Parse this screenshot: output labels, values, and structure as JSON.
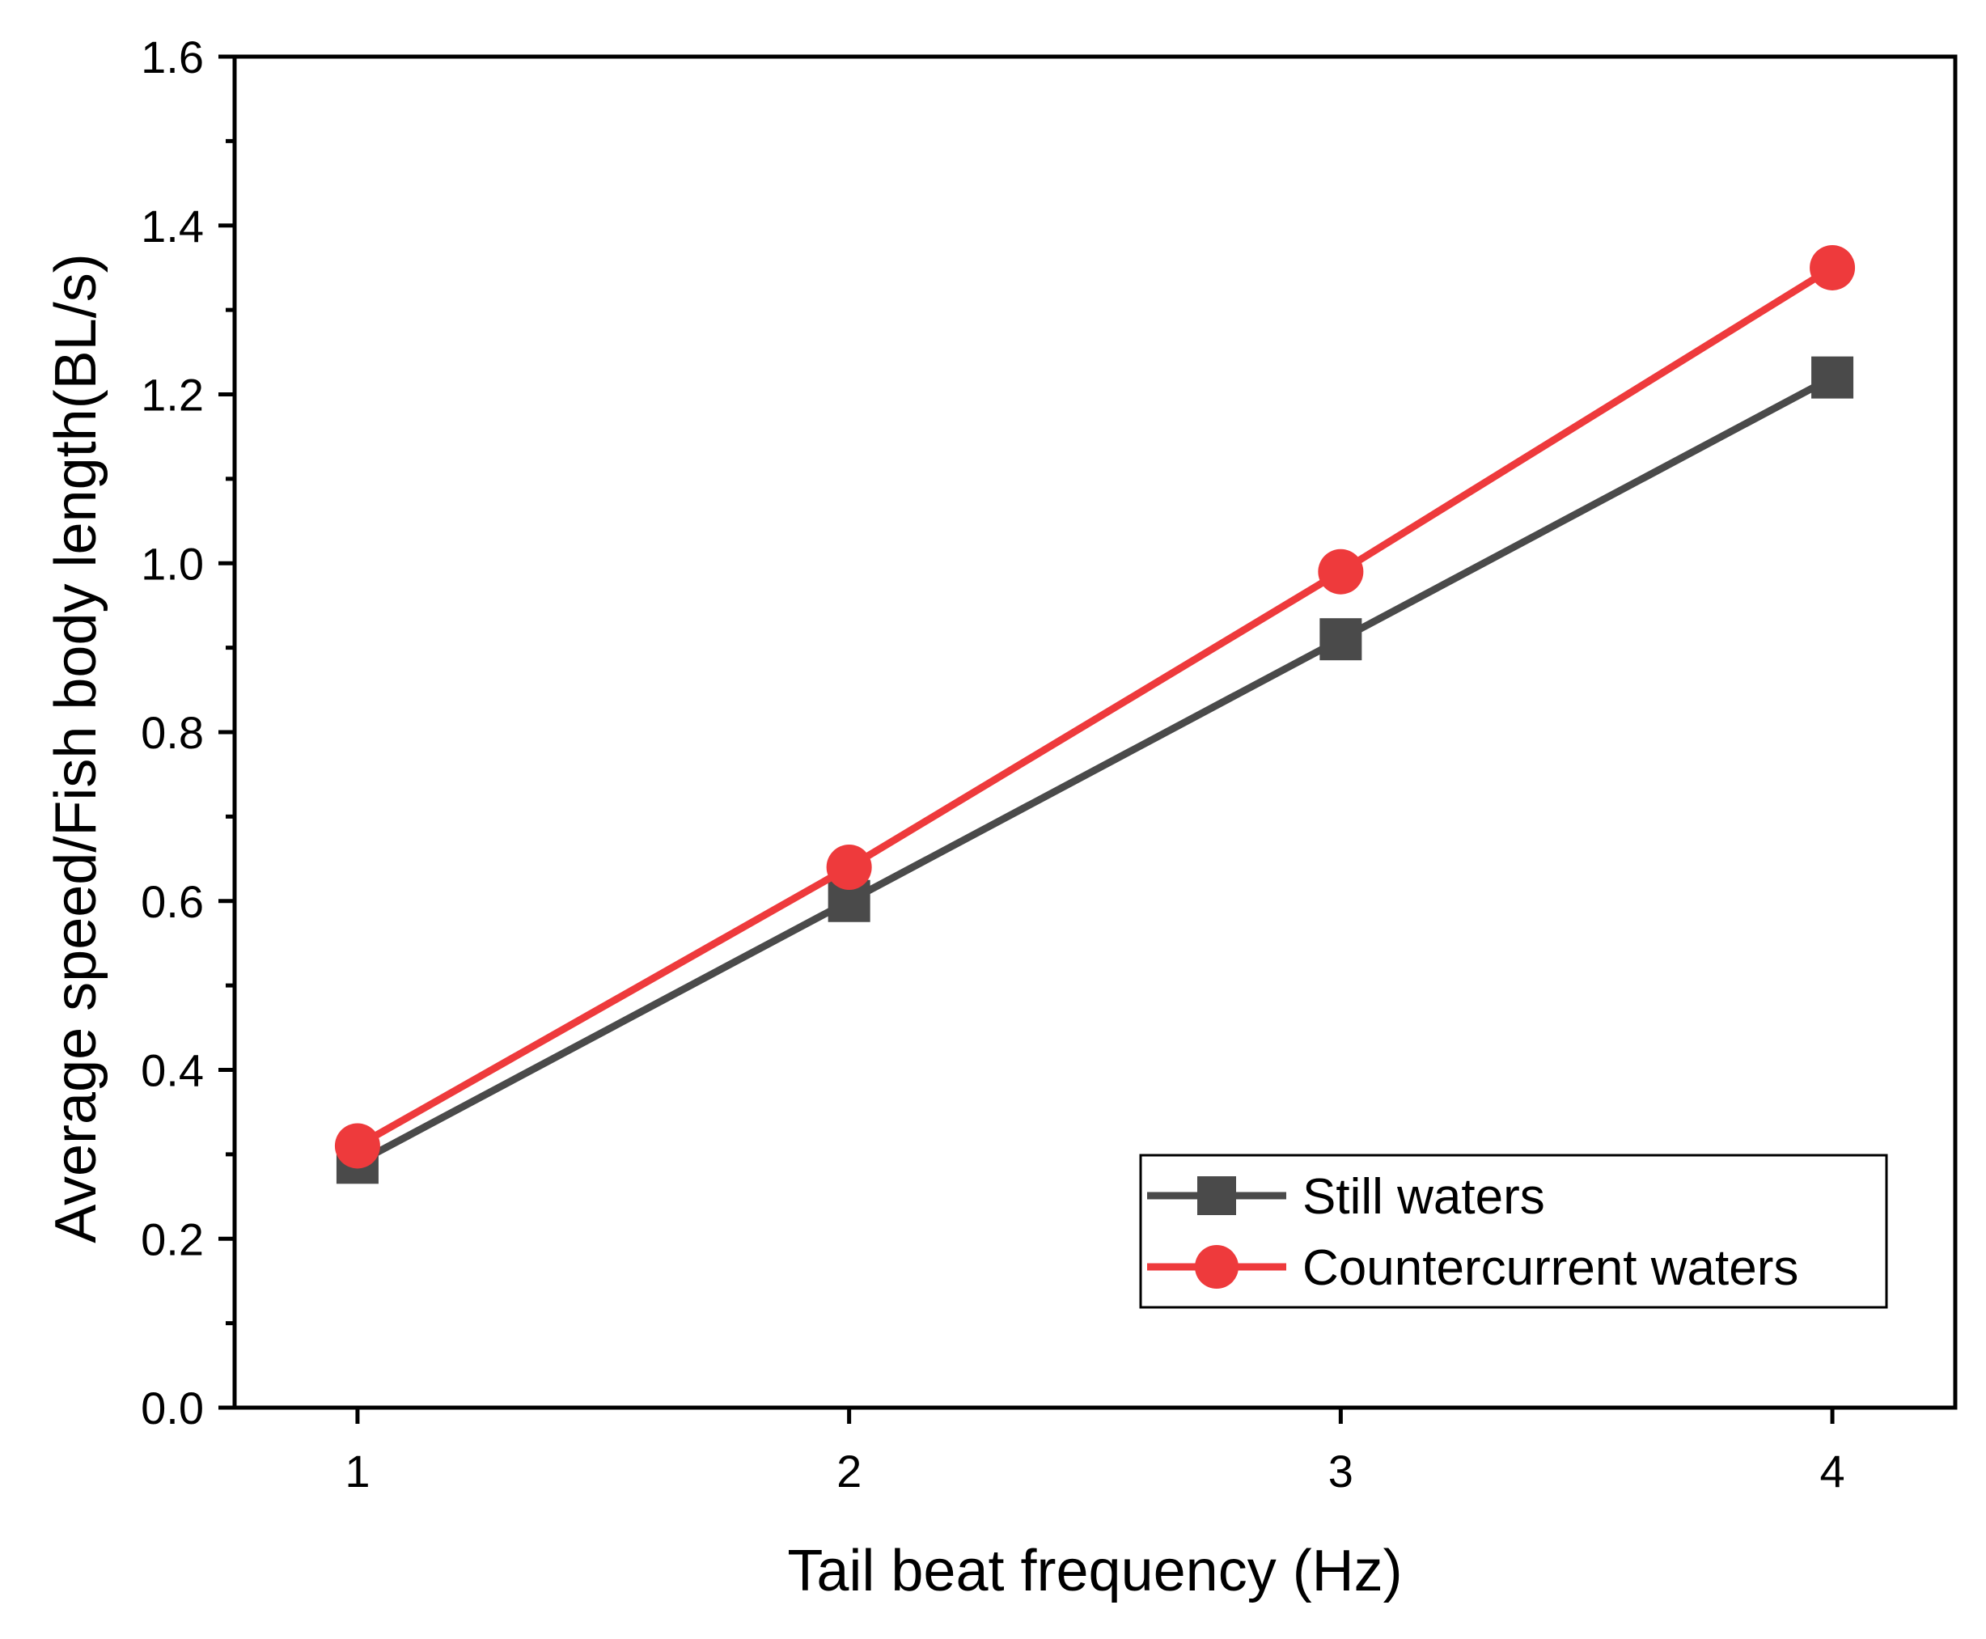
{
  "chart_data": {
    "type": "line",
    "title": "",
    "xlabel": "Tail beat frequency (Hz)",
    "ylabel": "Average speed/Fish body length(BL/s)",
    "x": [
      1,
      2,
      3,
      4
    ],
    "x_tick_labels": [
      "1",
      "2",
      "3",
      "4"
    ],
    "xlim": [
      0.75,
      4.25
    ],
    "ylim": [
      0,
      1.6
    ],
    "y_tick_labels": [
      "0.0",
      "0.2",
      "0.4",
      "0.6",
      "0.8",
      "1.0",
      "1.2",
      "1.4",
      "1.6"
    ],
    "grid": false,
    "legend_position": "bottom-right",
    "series": [
      {
        "name": "Still waters",
        "values": [
          0.29,
          0.6,
          0.91,
          1.22
        ],
        "color": "#4a4a4a",
        "marker": "square"
      },
      {
        "name": "Countercurrent waters",
        "values": [
          0.31,
          0.64,
          0.99,
          1.35
        ],
        "color": "#ee3a3c",
        "marker": "circle"
      }
    ]
  }
}
